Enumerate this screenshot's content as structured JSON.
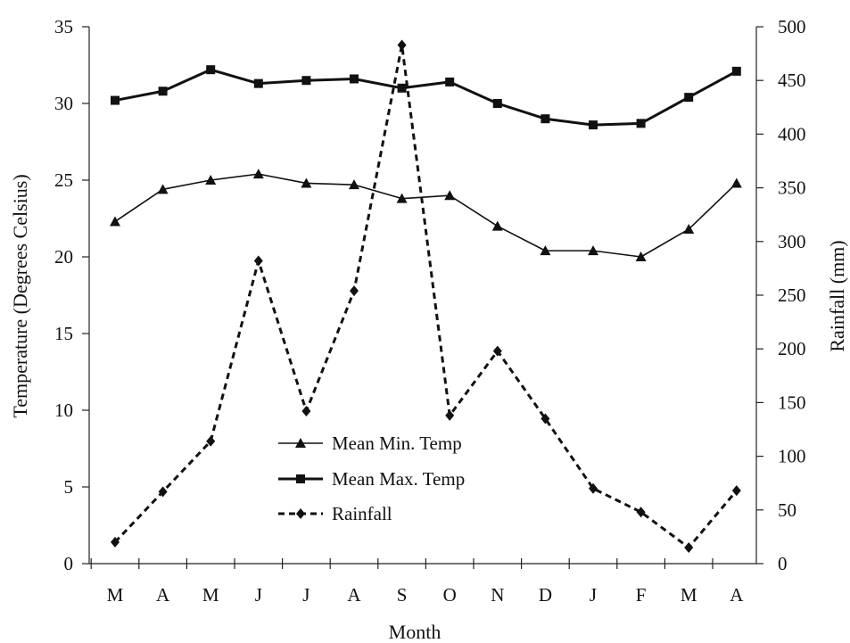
{
  "chart_data": {
    "type": "line",
    "title": "",
    "xlabel": "Month",
    "ylabel_left": "Temperature (Degrees Celsius)",
    "ylabel_right": "Rainfall (mm)",
    "categories": [
      "M",
      "A",
      "M",
      "J",
      "J",
      "A",
      "S",
      "O",
      "N",
      "D",
      "J",
      "F",
      "M",
      "A"
    ],
    "ylim_left": [
      0,
      35
    ],
    "yticks_left": [
      0,
      5,
      10,
      15,
      20,
      25,
      30,
      35
    ],
    "ylim_right": [
      0,
      500
    ],
    "yticks_right": [
      0,
      50,
      100,
      150,
      200,
      250,
      300,
      350,
      400,
      450,
      500
    ],
    "grid": false,
    "legend_position": "center",
    "series": [
      {
        "name": "Mean Min. Temp",
        "axis": "left",
        "style": "thin-solid",
        "marker": "triangle",
        "values": [
          22.3,
          24.4,
          25.0,
          25.4,
          24.8,
          24.7,
          23.8,
          24.0,
          22.0,
          20.4,
          20.4,
          20.0,
          21.8,
          24.8
        ]
      },
      {
        "name": "Mean Max. Temp",
        "axis": "left",
        "style": "thick-solid",
        "marker": "square",
        "values": [
          30.2,
          30.8,
          32.2,
          31.3,
          31.5,
          31.6,
          31.0,
          31.4,
          30.0,
          29.0,
          28.6,
          28.7,
          30.4,
          32.1
        ]
      },
      {
        "name": "Rainfall",
        "axis": "right",
        "style": "dashed",
        "marker": "diamond",
        "values": [
          20,
          67,
          114,
          282,
          142,
          254,
          483,
          138,
          198,
          135,
          70,
          48,
          15,
          68
        ]
      }
    ]
  }
}
